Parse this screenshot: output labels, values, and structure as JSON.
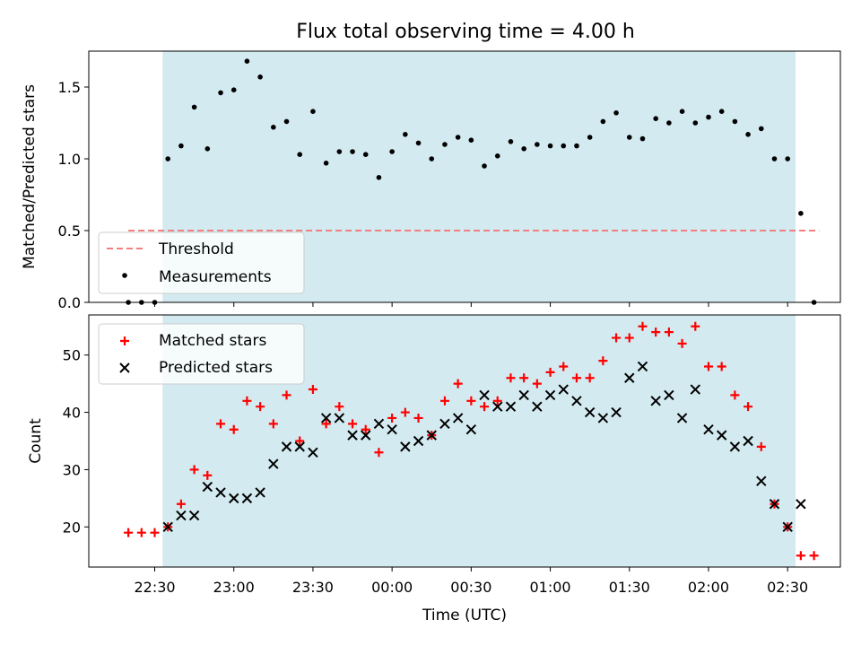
{
  "chart_data": [
    {
      "type": "scatter",
      "title": "Flux total observing time = 4.00 h",
      "xlabel": "",
      "ylabel": "Matched/Predicted stars",
      "xlim": [
        "22:05",
        "02:50"
      ],
      "ylim": [
        0,
        1.75
      ],
      "yticks": [
        "0.0",
        "0.5",
        "1.0",
        "1.5"
      ],
      "shaded_window": [
        "22:33",
        "02:33"
      ],
      "threshold": {
        "name": "Threshold",
        "y": 0.5,
        "x_range": [
          "22:20",
          "02:42"
        ],
        "color": "#f08080",
        "style": "dashed"
      },
      "legend": {
        "placement": "lower-left",
        "entries": [
          "Threshold",
          "Measurements"
        ]
      },
      "series": [
        {
          "name": "Measurements",
          "marker": "dot",
          "color": "#000000",
          "x": [
            "22:20",
            "22:25",
            "22:30",
            "22:35",
            "22:40",
            "22:45",
            "22:50",
            "22:55",
            "23:00",
            "23:05",
            "23:10",
            "23:15",
            "23:20",
            "23:25",
            "23:30",
            "23:35",
            "23:40",
            "23:45",
            "23:50",
            "23:55",
            "00:00",
            "00:05",
            "00:10",
            "00:15",
            "00:20",
            "00:25",
            "00:30",
            "00:35",
            "00:40",
            "00:45",
            "00:50",
            "00:55",
            "01:00",
            "01:05",
            "01:10",
            "01:15",
            "01:20",
            "01:25",
            "01:30",
            "01:35",
            "01:40",
            "01:45",
            "01:50",
            "01:55",
            "02:00",
            "02:05",
            "02:10",
            "02:15",
            "02:20",
            "02:25",
            "02:30",
            "02:35",
            "02:40"
          ],
          "y": [
            0,
            0,
            0,
            1.0,
            1.09,
            1.36,
            1.07,
            1.46,
            1.48,
            1.68,
            1.57,
            1.22,
            1.26,
            1.03,
            1.33,
            0.97,
            1.05,
            1.05,
            1.03,
            0.87,
            1.05,
            1.17,
            1.11,
            1.0,
            1.1,
            1.15,
            1.13,
            0.95,
            1.02,
            1.12,
            1.07,
            1.1,
            1.09,
            1.09,
            1.09,
            1.15,
            1.26,
            1.32,
            1.15,
            1.14,
            1.28,
            1.25,
            1.33,
            1.25,
            1.29,
            1.33,
            1.26,
            1.17,
            1.21,
            1.0,
            1.0,
            0.62,
            0
          ]
        }
      ]
    },
    {
      "type": "scatter",
      "title": "",
      "xlabel": "Time (UTC)",
      "ylabel": "Count",
      "xlim": [
        "22:05",
        "02:50"
      ],
      "ylim": [
        13,
        57
      ],
      "yticks": [
        "20",
        "30",
        "40",
        "50"
      ],
      "xticks": [
        "22:30",
        "23:00",
        "23:30",
        "00:00",
        "00:30",
        "01:00",
        "01:30",
        "02:00",
        "02:30"
      ],
      "shaded_window": [
        "22:33",
        "02:33"
      ],
      "legend": {
        "placement": "top-left",
        "entries": [
          "Matched stars",
          "Predicted stars"
        ]
      },
      "series": [
        {
          "name": "Matched stars",
          "marker": "plus",
          "color": "#ff0000",
          "x": [
            "22:20",
            "22:25",
            "22:30",
            "22:35",
            "22:40",
            "22:45",
            "22:50",
            "22:55",
            "23:00",
            "23:05",
            "23:10",
            "23:15",
            "23:20",
            "23:25",
            "23:30",
            "23:35",
            "23:40",
            "23:45",
            "23:50",
            "23:55",
            "00:00",
            "00:05",
            "00:10",
            "00:15",
            "00:20",
            "00:25",
            "00:30",
            "00:35",
            "00:40",
            "00:45",
            "00:50",
            "00:55",
            "01:00",
            "01:05",
            "01:10",
            "01:15",
            "01:20",
            "01:25",
            "01:30",
            "01:35",
            "01:40",
            "01:45",
            "01:50",
            "01:55",
            "02:00",
            "02:05",
            "02:10",
            "02:15",
            "02:20",
            "02:25",
            "02:30",
            "02:35",
            "02:40"
          ],
          "y": [
            19,
            19,
            19,
            20,
            24,
            30,
            29,
            38,
            37,
            42,
            41,
            38,
            43,
            35,
            44,
            38,
            41,
            38,
            37,
            33,
            39,
            40,
            39,
            36,
            42,
            45,
            42,
            41,
            42,
            46,
            46,
            45,
            47,
            48,
            46,
            46,
            49,
            53,
            53,
            55,
            54,
            54,
            52,
            55,
            48,
            48,
            43,
            41,
            34,
            24,
            20,
            15,
            15
          ]
        },
        {
          "name": "Predicted stars",
          "marker": "x",
          "color": "#000000",
          "x": [
            "22:35",
            "22:40",
            "22:45",
            "22:50",
            "22:55",
            "23:00",
            "23:05",
            "23:10",
            "23:15",
            "23:20",
            "23:25",
            "23:30",
            "23:35",
            "23:40",
            "23:45",
            "23:50",
            "23:55",
            "00:00",
            "00:05",
            "00:10",
            "00:15",
            "00:20",
            "00:25",
            "00:30",
            "00:35",
            "00:40",
            "00:45",
            "00:50",
            "00:55",
            "01:00",
            "01:05",
            "01:10",
            "01:15",
            "01:20",
            "01:25",
            "01:30",
            "01:35",
            "01:40",
            "01:45",
            "01:50",
            "01:55",
            "02:00",
            "02:05",
            "02:10",
            "02:15",
            "02:20",
            "02:25",
            "02:30",
            "02:35"
          ],
          "y": [
            20,
            22,
            22,
            27,
            26,
            25,
            25,
            26,
            31,
            34,
            34,
            33,
            39,
            39,
            36,
            36,
            38,
            37,
            34,
            35,
            36,
            38,
            39,
            37,
            43,
            41,
            41,
            43,
            41,
            43,
            44,
            42,
            40,
            39,
            40,
            46,
            48,
            42,
            43,
            39,
            44,
            37,
            36,
            34,
            35,
            28,
            24,
            20,
            24
          ]
        }
      ]
    }
  ]
}
